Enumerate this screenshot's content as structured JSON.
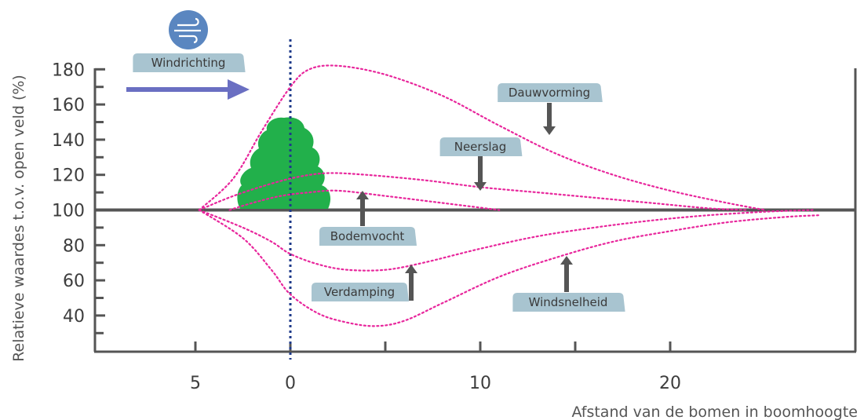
{
  "chart_data": {
    "type": "line",
    "xlabel": "Afstand van de bomen in boomhoogte",
    "ylabel": "Relatieve waardes t.o.v. open veld (%)",
    "ylim": [
      25,
      185
    ],
    "yticks": [
      40,
      60,
      80,
      100,
      120,
      140,
      160,
      180
    ],
    "xticks": [
      {
        "label": "5",
        "value": -5
      },
      {
        "label": "0",
        "value": 0
      },
      {
        "label": "10",
        "value": 10
      },
      {
        "label": "20",
        "value": 20
      }
    ],
    "windrichting_label": "Windrichting",
    "series": [
      {
        "name": "Dauwvorming",
        "x": [
          -4.8,
          -3,
          -1.5,
          0,
          1,
          2.5,
          5,
          8,
          11,
          14,
          17,
          20,
          23,
          25
        ],
        "y": [
          100,
          118,
          145,
          170,
          180,
          182,
          177,
          165,
          148,
          132,
          120,
          111,
          104,
          100
        ]
      },
      {
        "name": "Neerslag",
        "x": [
          -4.8,
          -3,
          -1,
          0.5,
          2,
          4,
          7,
          10,
          13,
          16,
          19,
          22,
          24
        ],
        "y": [
          100,
          108,
          115,
          119,
          121,
          120,
          117,
          113,
          110,
          107,
          104,
          101,
          100
        ]
      },
      {
        "name": "Bodemvocht",
        "x": [
          -3.2,
          -2,
          -0.5,
          1,
          2.5,
          5,
          8,
          11
        ],
        "y": [
          100,
          104,
          108,
          110,
          111,
          108,
          104,
          100
        ]
      },
      {
        "name": "Verdamping",
        "x": [
          -4.8,
          -2.5,
          -1,
          0,
          1.5,
          3,
          5,
          7,
          10,
          13,
          16,
          19,
          22,
          25,
          27.5
        ],
        "y": [
          100,
          90,
          82,
          75,
          69,
          66,
          66,
          70,
          78,
          85,
          90,
          94,
          97,
          99,
          100
        ]
      },
      {
        "name": "Windsnelheid",
        "x": [
          -4.8,
          -2.5,
          -1,
          0,
          1.5,
          3,
          4.5,
          6,
          8,
          11,
          14,
          17,
          20,
          23,
          26,
          27.8
        ],
        "y": [
          100,
          84,
          66,
          52,
          41,
          36,
          34,
          37,
          47,
          62,
          73,
          82,
          88,
          93,
          96,
          97
        ]
      }
    ],
    "annotations": [
      {
        "text": "Dauwvorming",
        "points_to": "Dauwvorming",
        "arrow": "down"
      },
      {
        "text": "Neerslag",
        "points_to": "Neerslag",
        "arrow": "down"
      },
      {
        "text": "Bodemvocht",
        "points_to": "Bodemvocht",
        "arrow": "up"
      },
      {
        "text": "Verdamping",
        "points_to": "Verdamping",
        "arrow": "up"
      },
      {
        "text": "Windsnelheid",
        "points_to": "Windsnelheid",
        "arrow": "up"
      }
    ],
    "colors": {
      "curves": "#e8269c",
      "axes": "#555555",
      "tree": "#22b04b",
      "tree_line": "#1e3a8a",
      "wind_arrow": "#6a6fc2",
      "wind_icon": "#5a86c0",
      "label_box": "#a8c4d0",
      "annotation_arrow": "#555555"
    }
  }
}
